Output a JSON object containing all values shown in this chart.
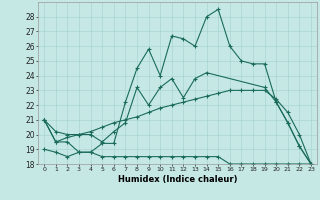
{
  "background_color": "#c5e8e5",
  "grid_color": "#aad4d0",
  "line_color": "#1a6b5a",
  "xlabel": "Humidex (Indice chaleur)",
  "xlim": [
    -0.5,
    23.5
  ],
  "ylim": [
    18,
    29
  ],
  "yticks": [
    18,
    19,
    20,
    21,
    22,
    23,
    24,
    25,
    26,
    27,
    28
  ],
  "xticks": [
    0,
    1,
    2,
    3,
    4,
    5,
    6,
    7,
    8,
    9,
    10,
    11,
    12,
    13,
    14,
    15,
    16,
    17,
    18,
    19,
    20,
    21,
    22,
    23
  ],
  "series1_x": [
    0,
    1,
    2,
    3,
    4,
    5,
    6,
    7,
    8,
    9,
    10,
    11,
    12,
    13,
    14,
    15,
    16,
    17,
    18,
    19,
    20,
    21,
    22,
    23
  ],
  "series1_y": [
    21.0,
    19.5,
    19.5,
    18.8,
    18.8,
    19.4,
    19.4,
    22.2,
    24.5,
    25.8,
    24.0,
    26.7,
    26.5,
    26.0,
    28.0,
    28.5,
    26.0,
    25.0,
    24.8,
    24.8,
    22.2,
    20.8,
    19.2,
    18.0
  ],
  "series2_x": [
    0,
    1,
    2,
    3,
    4,
    5,
    6,
    7,
    8,
    9,
    10,
    11,
    12,
    13,
    14,
    19,
    20,
    21,
    22,
    23
  ],
  "series2_y": [
    21.0,
    19.5,
    19.8,
    20.0,
    20.0,
    19.5,
    20.2,
    20.8,
    23.2,
    22.0,
    23.2,
    23.8,
    22.5,
    23.8,
    24.2,
    23.2,
    22.2,
    20.8,
    19.2,
    18.0
  ],
  "series3_x": [
    0,
    1,
    2,
    3,
    4,
    5,
    6,
    7,
    8,
    9,
    10,
    11,
    12,
    13,
    14,
    15,
    16,
    17,
    18,
    19,
    20,
    21,
    22,
    23
  ],
  "series3_y": [
    21.0,
    20.2,
    20.0,
    20.0,
    20.2,
    20.5,
    20.8,
    21.0,
    21.2,
    21.5,
    21.8,
    22.0,
    22.2,
    22.4,
    22.6,
    22.8,
    23.0,
    23.0,
    23.0,
    23.0,
    22.4,
    21.5,
    20.0,
    18.0
  ],
  "series4_x": [
    0,
    1,
    2,
    3,
    4,
    5,
    6,
    7,
    8,
    9,
    10,
    11,
    12,
    13,
    14,
    15,
    16,
    17,
    18,
    19,
    20,
    21,
    22,
    23
  ],
  "series4_y": [
    19.0,
    18.8,
    18.5,
    18.8,
    18.8,
    18.5,
    18.5,
    18.5,
    18.5,
    18.5,
    18.5,
    18.5,
    18.5,
    18.5,
    18.5,
    18.5,
    18.0,
    18.0,
    18.0,
    18.0,
    18.0,
    18.0,
    18.0,
    18.0
  ]
}
